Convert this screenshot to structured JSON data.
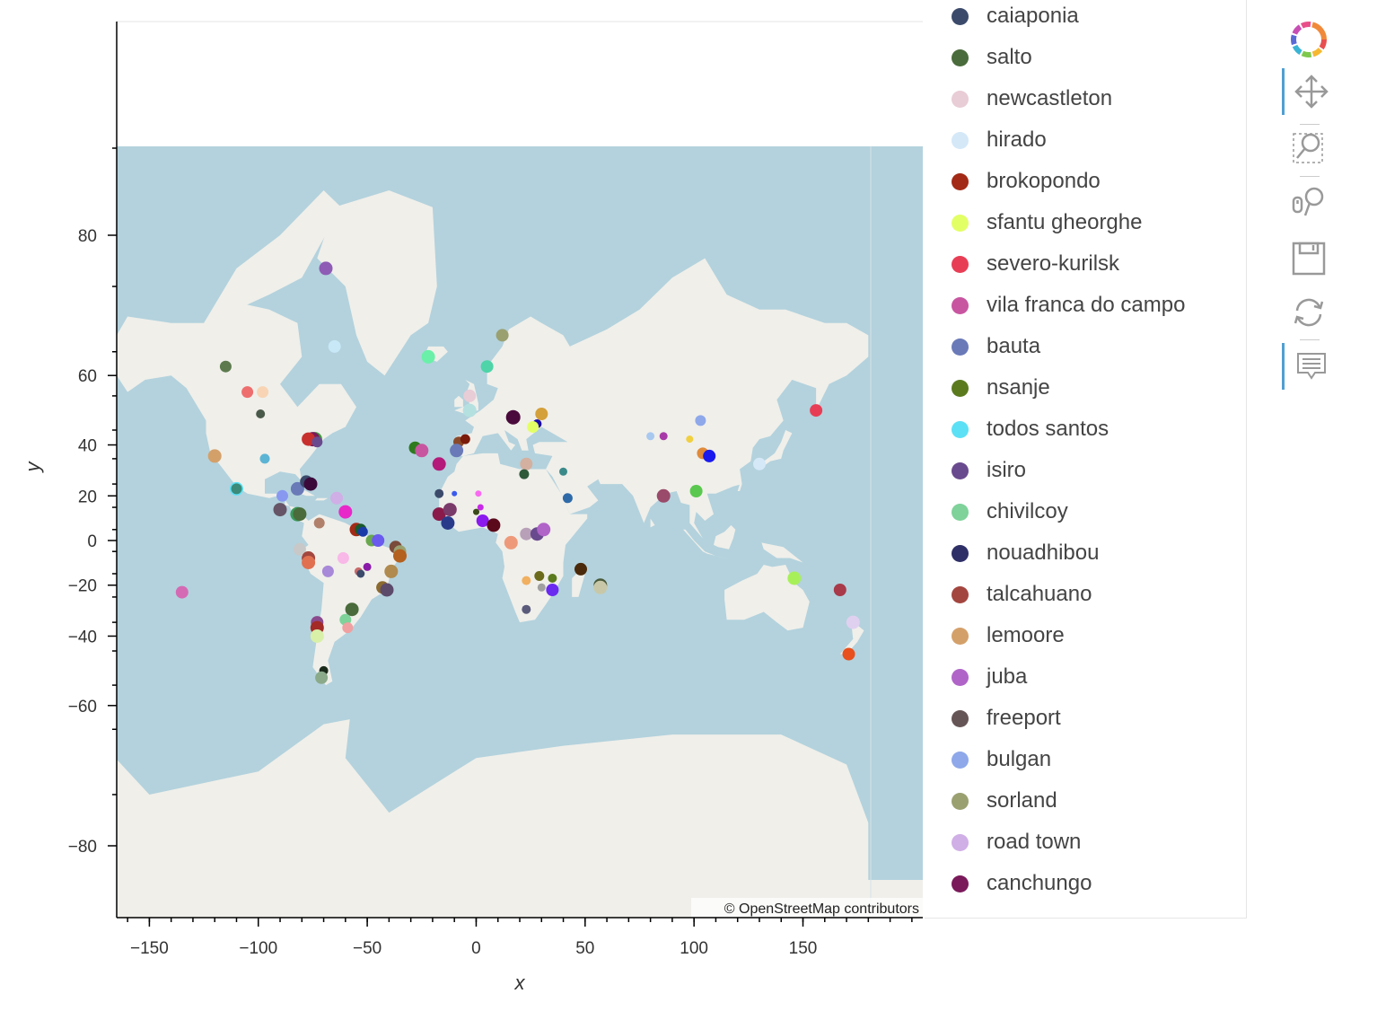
{
  "colors": {
    "ocean": "#b3d2dd",
    "land": "#f0efea",
    "axis": "#000000"
  },
  "attribution": "© OpenStreetMap contributors",
  "toolbar": {
    "tools": [
      {
        "name": "bokeh-logo-icon",
        "active": false
      },
      {
        "name": "pan-icon",
        "active": true
      },
      {
        "name": "box-zoom-icon",
        "active": false
      },
      {
        "name": "wheel-zoom-icon",
        "active": false
      },
      {
        "name": "save-icon",
        "active": false
      },
      {
        "name": "reset-icon",
        "active": false
      },
      {
        "name": "hover-icon",
        "active": true
      }
    ]
  },
  "chart_data": {
    "type": "scatter",
    "title": "",
    "xlabel": "x",
    "ylabel": "y",
    "xlim": [
      -165,
      205
    ],
    "ylim": [
      -90,
      90
    ],
    "xticks": [
      -150,
      -100,
      -50,
      0,
      50,
      100,
      150
    ],
    "xtick_labels": [
      "−150",
      "−100",
      "−50",
      "0",
      "50",
      "100",
      "150"
    ],
    "yticks": [
      80,
      60,
      40,
      20,
      0,
      -20,
      -40,
      -60,
      -80
    ],
    "ytick_labels": [
      "80",
      "60",
      "40",
      "20",
      "0",
      "−20",
      "−40",
      "−60",
      "−80"
    ],
    "y_projection": "web-mercator",
    "legend_placement": "right",
    "legend": [
      {
        "name": "caiaponia",
        "color": "#3b4a6b"
      },
      {
        "name": "salto",
        "color": "#4a6b3b"
      },
      {
        "name": "newcastleton",
        "color": "#e8ccd6"
      },
      {
        "name": "hirado",
        "color": "#d4e8f8"
      },
      {
        "name": "brokopondo",
        "color": "#a32a16"
      },
      {
        "name": "sfantu gheorghe",
        "color": "#e3ff66"
      },
      {
        "name": "severo-kurilsk",
        "color": "#e83e55"
      },
      {
        "name": "vila franca do campo",
        "color": "#c855a0"
      },
      {
        "name": "bauta",
        "color": "#6a7ab8"
      },
      {
        "name": "nsanje",
        "color": "#5b7a1e"
      },
      {
        "name": "todos santos",
        "color": "#5ce0f5"
      },
      {
        "name": "isiro",
        "color": "#6a4a8e"
      },
      {
        "name": "chivilcoy",
        "color": "#7ed29a"
      },
      {
        "name": "nouadhibou",
        "color": "#2e2f66"
      },
      {
        "name": "talcahuano",
        "color": "#a3463f"
      },
      {
        "name": "lemoore",
        "color": "#d4a06a"
      },
      {
        "name": "juba",
        "color": "#b064c8"
      },
      {
        "name": "freeport",
        "color": "#665556"
      },
      {
        "name": "bulgan",
        "color": "#8ea8ea"
      },
      {
        "name": "sorland",
        "color": "#9aa070"
      },
      {
        "name": "road town",
        "color": "#d0aee6"
      },
      {
        "name": "canchungo",
        "color": "#7a1a5a"
      }
    ],
    "points": [
      {
        "x": -69,
        "y": 77,
        "c": "#8e5cb4",
        "s": 15
      },
      {
        "x": -65,
        "y": 66,
        "c": "#c8e8f8",
        "s": 14
      },
      {
        "x": -115,
        "y": 62,
        "c": "#5c7a4e",
        "s": 13
      },
      {
        "x": -105,
        "y": 56,
        "c": "#ee6e6e",
        "s": 13
      },
      {
        "x": -98,
        "y": 56,
        "c": "#f8d4b4",
        "s": 13
      },
      {
        "x": -99,
        "y": 50,
        "c": "#4a5a4a",
        "s": 10
      },
      {
        "x": -120,
        "y": 36,
        "c": "#d4a06a",
        "s": 15
      },
      {
        "x": -97,
        "y": 35,
        "c": "#5cb4d4",
        "s": 11
      },
      {
        "x": -74,
        "y": 42,
        "c": "#3b9a3b",
        "s": 16
      },
      {
        "x": -75,
        "y": 42,
        "c": "#7a1a5a",
        "s": 16
      },
      {
        "x": -77,
        "y": 42,
        "c": "#c8302e",
        "s": 15
      },
      {
        "x": -73,
        "y": 41,
        "c": "#6a4a8e",
        "s": 12
      },
      {
        "x": -110,
        "y": 23,
        "c": "#5ce0f5",
        "s": 15
      },
      {
        "x": -110,
        "y": 23,
        "c": "#3b8a7a",
        "s": 12
      },
      {
        "x": -89,
        "y": 20,
        "c": "#8898f0",
        "s": 13
      },
      {
        "x": -82,
        "y": 23,
        "c": "#6a7ab8",
        "s": 15
      },
      {
        "x": -78,
        "y": 26,
        "c": "#3b4a6b",
        "s": 14
      },
      {
        "x": -76,
        "y": 25,
        "c": "#3b0a3b",
        "s": 15
      },
      {
        "x": -64,
        "y": 19,
        "c": "#d0aee6",
        "s": 14
      },
      {
        "x": -60,
        "y": 13,
        "c": "#e828c8",
        "s": 15
      },
      {
        "x": -90,
        "y": 14,
        "c": "#665566",
        "s": 15
      },
      {
        "x": -82,
        "y": 12,
        "c": "#3b9a5b",
        "s": 16
      },
      {
        "x": -81,
        "y": 12,
        "c": "#4a6b3b",
        "s": 15
      },
      {
        "x": -72,
        "y": 8,
        "c": "#b0806a",
        "s": 12
      },
      {
        "x": -55,
        "y": 5,
        "c": "#a32a16",
        "s": 15
      },
      {
        "x": -53,
        "y": 5,
        "c": "#1a5a2a",
        "s": 13
      },
      {
        "x": -52,
        "y": 4,
        "c": "#1a3aa8",
        "s": 11
      },
      {
        "x": -48,
        "y": 0,
        "c": "#6aa84e",
        "s": 13
      },
      {
        "x": -45,
        "y": 0,
        "c": "#6a5aee",
        "s": 14
      },
      {
        "x": -37,
        "y": -3,
        "c": "#7a4a3a",
        "s": 14
      },
      {
        "x": -35,
        "y": -5,
        "c": "#9aa070",
        "s": 14
      },
      {
        "x": -35,
        "y": -7,
        "c": "#b4601e",
        "s": 15
      },
      {
        "x": -81,
        "y": -4,
        "c": "#c8c8c8",
        "s": 14
      },
      {
        "x": -77,
        "y": -8,
        "c": "#a3463f",
        "s": 15
      },
      {
        "x": -77,
        "y": -10,
        "c": "#e07050",
        "s": 15
      },
      {
        "x": -61,
        "y": -8,
        "c": "#f8b8e8",
        "s": 13
      },
      {
        "x": -68,
        "y": -14,
        "c": "#a888d8",
        "s": 13
      },
      {
        "x": -54,
        "y": -14,
        "c": "#c86a6a",
        "s": 9
      },
      {
        "x": -53,
        "y": -15,
        "c": "#3b4a6b",
        "s": 9
      },
      {
        "x": -50,
        "y": -12,
        "c": "#8a1aa8",
        "s": 9
      },
      {
        "x": -39,
        "y": -14,
        "c": "#b08a4e",
        "s": 15
      },
      {
        "x": -43,
        "y": -21,
        "c": "#8a6a2e",
        "s": 14
      },
      {
        "x": -41,
        "y": -22,
        "c": "#5c4a6b",
        "s": 15
      },
      {
        "x": -57,
        "y": -30,
        "c": "#4a6b3b",
        "s": 15
      },
      {
        "x": -60,
        "y": -34,
        "c": "#7ed29a",
        "s": 13
      },
      {
        "x": -59,
        "y": -37,
        "c": "#f0a0a0",
        "s": 12
      },
      {
        "x": -73,
        "y": -35,
        "c": "#8a4a8e",
        "s": 14
      },
      {
        "x": -73,
        "y": -37,
        "c": "#a32a26",
        "s": 15
      },
      {
        "x": -73,
        "y": -40,
        "c": "#d8f0a8",
        "s": 15
      },
      {
        "x": -70,
        "y": -51,
        "c": "#1a2a1a",
        "s": 10
      },
      {
        "x": -71,
        "y": -53,
        "c": "#8aaa8a",
        "s": 14
      },
      {
        "x": -135,
        "y": -23,
        "c": "#d46ab4",
        "s": 14
      },
      {
        "x": -22,
        "y": 64,
        "c": "#6af0a8",
        "s": 15
      },
      {
        "x": 5,
        "y": 62,
        "c": "#4ed4a8",
        "s": 14
      },
      {
        "x": 12,
        "y": 68,
        "c": "#9aa070",
        "s": 14
      },
      {
        "x": -3,
        "y": 55,
        "c": "#e8ccd6",
        "s": 14
      },
      {
        "x": -3,
        "y": 51,
        "c": "#b4e0e0",
        "s": 15
      },
      {
        "x": 17,
        "y": 49,
        "c": "#4a0a3b",
        "s": 16
      },
      {
        "x": 28,
        "y": 47,
        "c": "#1a0aa8",
        "s": 10
      },
      {
        "x": 30,
        "y": 50,
        "c": "#d4a03a",
        "s": 14
      },
      {
        "x": 26,
        "y": 46,
        "c": "#e3ff66",
        "s": 13
      },
      {
        "x": -28,
        "y": 39,
        "c": "#2e7a1e",
        "s": 14
      },
      {
        "x": -25,
        "y": 38,
        "c": "#c855a0",
        "s": 15
      },
      {
        "x": -8,
        "y": 41,
        "c": "#8a4a2a",
        "s": 12
      },
      {
        "x": -5,
        "y": 42,
        "c": "#7a1a0a",
        "s": 11
      },
      {
        "x": -9,
        "y": 38,
        "c": "#6a7ab8",
        "s": 15
      },
      {
        "x": -17,
        "y": 33,
        "c": "#b41a7a",
        "s": 15
      },
      {
        "x": 23,
        "y": 33,
        "c": "#d4b0a0",
        "s": 14
      },
      {
        "x": 22,
        "y": 29,
        "c": "#2e5a3a",
        "s": 11
      },
      {
        "x": 40,
        "y": 30,
        "c": "#3b8a8a",
        "s": 9
      },
      {
        "x": -17,
        "y": 21,
        "c": "#3b4a6b",
        "s": 10
      },
      {
        "x": -10,
        "y": 21,
        "c": "#3b5aee",
        "s": 6
      },
      {
        "x": 1,
        "y": 21,
        "c": "#f86af0",
        "s": 7
      },
      {
        "x": 2,
        "y": 15,
        "c": "#c828e8",
        "s": 7
      },
      {
        "x": 0,
        "y": 13,
        "c": "#3b4a1a",
        "s": 7
      },
      {
        "x": -17,
        "y": 12,
        "c": "#8a1a4a",
        "s": 15
      },
      {
        "x": -12,
        "y": 14,
        "c": "#7a3a6a",
        "s": 15
      },
      {
        "x": -13,
        "y": 8,
        "c": "#2a3a8a",
        "s": 15
      },
      {
        "x": 3,
        "y": 9,
        "c": "#8a1aee",
        "s": 14
      },
      {
        "x": 8,
        "y": 7,
        "c": "#5a0a1a",
        "s": 15
      },
      {
        "x": 42,
        "y": 19,
        "c": "#2e6aa8",
        "s": 11
      },
      {
        "x": 16,
        "y": -1,
        "c": "#ee9a7a",
        "s": 15
      },
      {
        "x": 23,
        "y": 3,
        "c": "#b8a0b8",
        "s": 14
      },
      {
        "x": 28,
        "y": 3,
        "c": "#6a4a8e",
        "s": 15
      },
      {
        "x": 31,
        "y": 5,
        "c": "#b064c8",
        "s": 15
      },
      {
        "x": 48,
        "y": -13,
        "c": "#4a2a0a",
        "s": 14
      },
      {
        "x": 23,
        "y": -18,
        "c": "#f0b060",
        "s": 10
      },
      {
        "x": 29,
        "y": -16,
        "c": "#6a6a1a",
        "s": 11
      },
      {
        "x": 35,
        "y": -17,
        "c": "#5b7a1e",
        "s": 10
      },
      {
        "x": 30,
        "y": -21,
        "c": "#a0a0a0",
        "s": 9
      },
      {
        "x": 35,
        "y": -22,
        "c": "#6a2af0",
        "s": 14
      },
      {
        "x": 57,
        "y": -20,
        "c": "#4a5a3a",
        "s": 15
      },
      {
        "x": 57,
        "y": -21,
        "c": "#c8c8a8",
        "s": 15
      },
      {
        "x": 23,
        "y": -30,
        "c": "#5a5a7a",
        "s": 10
      },
      {
        "x": 80,
        "y": 43,
        "c": "#a8c8f0",
        "s": 9
      },
      {
        "x": 86,
        "y": 43,
        "c": "#a83aa8",
        "s": 9
      },
      {
        "x": 98,
        "y": 42,
        "c": "#f0d040",
        "s": 8
      },
      {
        "x": 104,
        "y": 37,
        "c": "#e08a3a",
        "s": 13
      },
      {
        "x": 107,
        "y": 36,
        "c": "#1a1aee",
        "s": 14
      },
      {
        "x": 103,
        "y": 48,
        "c": "#8ea8ea",
        "s": 12
      },
      {
        "x": 86,
        "y": 20,
        "c": "#9a4a6a",
        "s": 15
      },
      {
        "x": 101,
        "y": 22,
        "c": "#5ac84e",
        "s": 14
      },
      {
        "x": 130,
        "y": 33,
        "c": "#d4e8f8",
        "s": 14
      },
      {
        "x": 156,
        "y": 51,
        "c": "#e83e55",
        "s": 14
      },
      {
        "x": 146,
        "y": -17,
        "c": "#a8f05a",
        "s": 15
      },
      {
        "x": 167,
        "y": -22,
        "c": "#a83a4a",
        "s": 14
      },
      {
        "x": 173,
        "y": -35,
        "c": "#e0d0f0",
        "s": 15
      },
      {
        "x": 171,
        "y": -46,
        "c": "#e8501e",
        "s": 14
      }
    ]
  }
}
